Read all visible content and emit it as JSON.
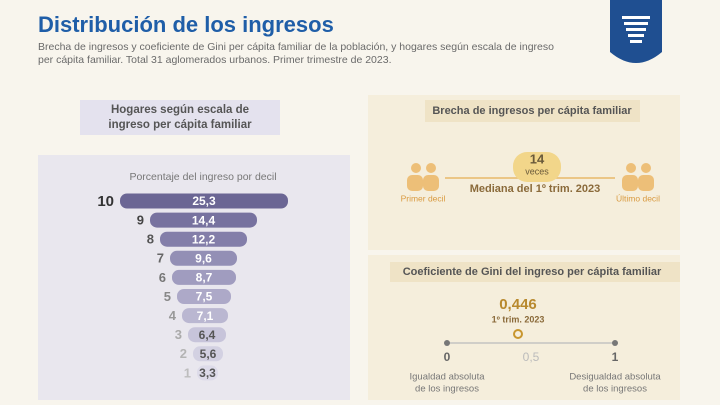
{
  "header": {
    "title": "Distribución de los ingresos",
    "subtitle_lines": [
      "Brecha de ingresos y coeficiente de Gini per cápita familiar de la población, y hogares según escala de ingreso",
      "per cápita familiar. Total 31 aglomerados urbanos. Primer trimestre de 2023."
    ]
  },
  "deciles": {
    "label_lines": [
      "Hogares según escala de",
      "ingreso per cápita familiar"
    ],
    "caption": "Porcentaje del ingreso por decil",
    "rows": [
      {
        "decile": "10",
        "value": "25,3"
      },
      {
        "decile": "9",
        "value": "14,4"
      },
      {
        "decile": "8",
        "value": "12,2"
      },
      {
        "decile": "7",
        "value": "9,6"
      },
      {
        "decile": "6",
        "value": "8,7"
      },
      {
        "decile": "5",
        "value": "7,5"
      },
      {
        "decile": "4",
        "value": "7,1"
      },
      {
        "decile": "3",
        "value": "6,4"
      },
      {
        "decile": "2",
        "value": "5,6"
      },
      {
        "decile": "1",
        "value": "3,3"
      }
    ]
  },
  "gap": {
    "label": "Brecha de ingresos per cápita familiar",
    "value": "14",
    "unit": "veces",
    "caption": "Mediana del 1º trim. 2023",
    "left": "Primer decil",
    "right": "Último decil"
  },
  "gini": {
    "label": "Coeficiente de Gini del ingreso per cápita familiar",
    "value": "0,446",
    "period": "1º trim. 2023",
    "scale": [
      "0",
      "0,5",
      "1"
    ],
    "left_lines": [
      "Igualdad absoluta",
      "de los ingresos"
    ],
    "right_lines": [
      "Desigualdad absoluta",
      "de los ingresos"
    ]
  }
}
